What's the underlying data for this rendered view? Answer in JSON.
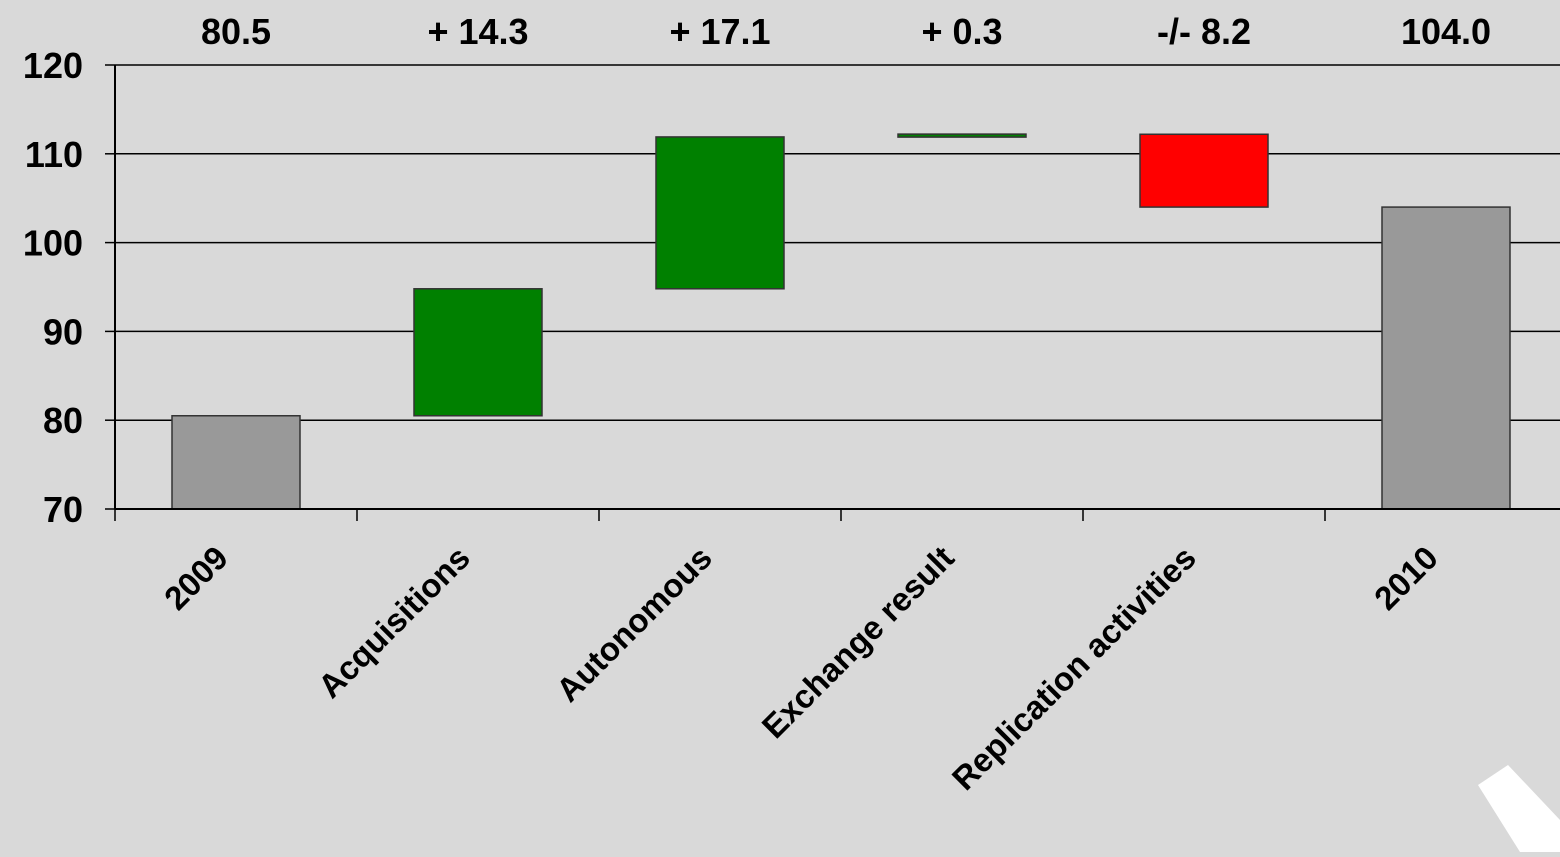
{
  "chart_data": {
    "type": "bar",
    "subtype": "waterfall",
    "title": "",
    "xlabel": "",
    "ylabel": "",
    "ylim": [
      70,
      120
    ],
    "yticks": [
      70,
      80,
      90,
      100,
      110,
      120
    ],
    "grid": true,
    "legend": "none",
    "categories": [
      "2009",
      "Acquisitions",
      "Autonomous",
      "Exchange result",
      "Replication activities",
      "2010"
    ],
    "bars": [
      {
        "category": "2009",
        "kind": "total",
        "start": 70,
        "end": 80.5,
        "label": "80.5",
        "color": "#999999"
      },
      {
        "category": "Acquisitions",
        "kind": "increase",
        "start": 80.5,
        "end": 94.8,
        "label": "+ 14.3",
        "color": "#008000"
      },
      {
        "category": "Autonomous",
        "kind": "increase",
        "start": 94.8,
        "end": 111.9,
        "label": "+ 17.1",
        "color": "#008000"
      },
      {
        "category": "Exchange result",
        "kind": "increase",
        "start": 111.9,
        "end": 112.2,
        "label": "+ 0.3",
        "color": "#008000"
      },
      {
        "category": "Replication activities",
        "kind": "decrease",
        "start": 112.2,
        "end": 104.0,
        "label": "-/- 8.2",
        "color": "#ff0000"
      },
      {
        "category": "2010",
        "kind": "total",
        "start": 70,
        "end": 104.0,
        "label": "104.0",
        "color": "#999999"
      }
    ],
    "colors": {
      "background": "#d9d9d9",
      "total": "#999999",
      "increase": "#008000",
      "decrease": "#ff0000",
      "gridline": "#000000"
    }
  }
}
